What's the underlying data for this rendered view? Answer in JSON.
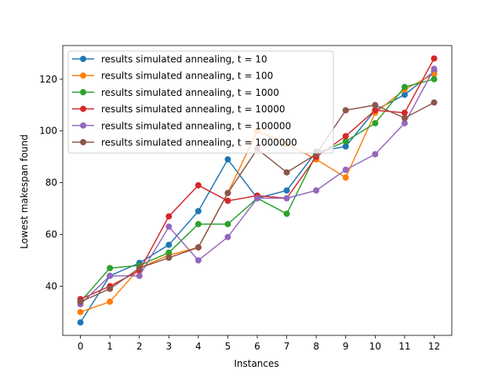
{
  "chart_data": {
    "type": "line",
    "xlabel": "Instances",
    "ylabel": "Lowest makespan found",
    "xlim": [
      -0.6,
      12.6
    ],
    "ylim": [
      21,
      133
    ],
    "x": [
      0,
      1,
      2,
      3,
      4,
      5,
      6,
      7,
      8,
      9,
      10,
      11,
      12
    ],
    "x_ticks": [
      "0",
      "1",
      "2",
      "3",
      "4",
      "5",
      "6",
      "7",
      "8",
      "9",
      "10",
      "11",
      "12"
    ],
    "y_ticks": [
      40,
      60,
      80,
      100,
      120
    ],
    "y_tick_labels": [
      "40",
      "60",
      "80",
      "100",
      "120"
    ],
    "grid": false,
    "legend_position": "top-left",
    "series": [
      {
        "name": "results simulated annealing, t = 10",
        "color": "#1f77b4",
        "values": [
          26,
          44,
          49,
          56,
          69,
          89,
          74,
          77,
          92,
          94,
          108,
          114,
          123
        ]
      },
      {
        "name": "results simulated annealing, t = 100",
        "color": "#ff7f0e",
        "values": [
          30,
          34,
          47,
          52,
          55,
          76,
          100,
          95,
          89,
          82,
          107,
          116,
          122
        ]
      },
      {
        "name": "results simulated annealing, t = 1000",
        "color": "#2ca02c",
        "values": [
          34,
          47,
          48,
          53,
          64,
          64,
          74,
          68,
          91,
          96,
          103,
          117,
          120
        ]
      },
      {
        "name": "results simulated annealing, t = 10000",
        "color": "#d62728",
        "values": [
          35,
          40,
          46,
          67,
          79,
          73,
          75,
          74,
          90,
          98,
          108,
          107,
          128
        ]
      },
      {
        "name": "results simulated annealing, t = 100000",
        "color": "#9467bd",
        "values": [
          33,
          44,
          44,
          63,
          50,
          59,
          74,
          74,
          77,
          85,
          91,
          103,
          124
        ]
      },
      {
        "name": "results simulated annealing, t = 1000000",
        "color": "#8c564b",
        "values": [
          34,
          39,
          47,
          51,
          55,
          76,
          93,
          84,
          91,
          108,
          110,
          105,
          111
        ]
      }
    ]
  }
}
